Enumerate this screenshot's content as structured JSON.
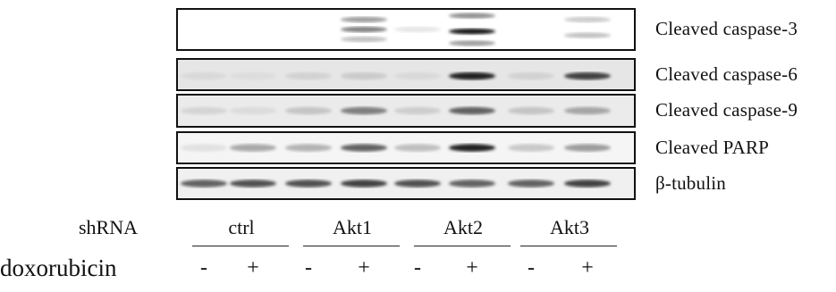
{
  "blots": [
    {
      "label": "Cleaved caspase-3",
      "bg": "#ffffff",
      "lanes": [
        [],
        [],
        [],
        [
          [
            0.25,
            0.5
          ],
          [
            0.5,
            0.6
          ],
          [
            0.75,
            0.35
          ]
        ],
        [
          [
            0.5,
            0.15
          ]
        ],
        [
          [
            0.15,
            0.55
          ],
          [
            0.55,
            0.95
          ],
          [
            0.85,
            0.5
          ]
        ],
        [],
        [
          [
            0.25,
            0.3
          ],
          [
            0.65,
            0.35
          ]
        ]
      ]
    },
    {
      "label": "Cleaved caspase-6",
      "bg": "#e6e6e6",
      "lanes": [
        [
          [
            0.55,
            0.15
          ]
        ],
        [
          [
            0.55,
            0.12
          ]
        ],
        [
          [
            0.55,
            0.2
          ]
        ],
        [
          [
            0.55,
            0.25
          ]
        ],
        [
          [
            0.55,
            0.15
          ]
        ],
        [
          [
            0.55,
            0.9
          ]
        ],
        [
          [
            0.55,
            0.2
          ]
        ],
        [
          [
            0.55,
            0.8
          ]
        ]
      ]
    },
    {
      "label": "Cleaved caspase-9",
      "bg": "#ebebeb",
      "lanes": [
        [
          [
            0.5,
            0.2
          ]
        ],
        [
          [
            0.5,
            0.15
          ]
        ],
        [
          [
            0.5,
            0.3
          ]
        ],
        [
          [
            0.5,
            0.6
          ]
        ],
        [
          [
            0.5,
            0.25
          ]
        ],
        [
          [
            0.5,
            0.7
          ]
        ],
        [
          [
            0.5,
            0.3
          ]
        ],
        [
          [
            0.5,
            0.45
          ]
        ]
      ]
    },
    {
      "label": "Cleaved PARP",
      "bg": "#f5f5f5",
      "lanes": [
        [
          [
            0.5,
            0.15
          ]
        ],
        [
          [
            0.5,
            0.45
          ]
        ],
        [
          [
            0.5,
            0.4
          ]
        ],
        [
          [
            0.5,
            0.7
          ]
        ],
        [
          [
            0.5,
            0.35
          ]
        ],
        [
          [
            0.5,
            0.9
          ]
        ],
        [
          [
            0.5,
            0.3
          ]
        ],
        [
          [
            0.5,
            0.5
          ]
        ]
      ]
    },
    {
      "label": "β-tubulin",
      "bg": "#f0f0f0",
      "lanes": [
        [
          [
            0.5,
            0.7
          ]
        ],
        [
          [
            0.5,
            0.75
          ]
        ],
        [
          [
            0.5,
            0.75
          ]
        ],
        [
          [
            0.5,
            0.8
          ]
        ],
        [
          [
            0.5,
            0.75
          ]
        ],
        [
          [
            0.5,
            0.7
          ]
        ],
        [
          [
            0.5,
            0.7
          ]
        ],
        [
          [
            0.5,
            0.8
          ]
        ]
      ]
    }
  ],
  "shrna": {
    "label": "shRNA",
    "groups": [
      "ctrl",
      "Akt1",
      "Akt2",
      "Akt3"
    ]
  },
  "doxorubicin": {
    "label": "doxorubicin",
    "signs": [
      "-",
      "+",
      "-",
      "+",
      "-",
      "+",
      "-",
      "+"
    ]
  }
}
